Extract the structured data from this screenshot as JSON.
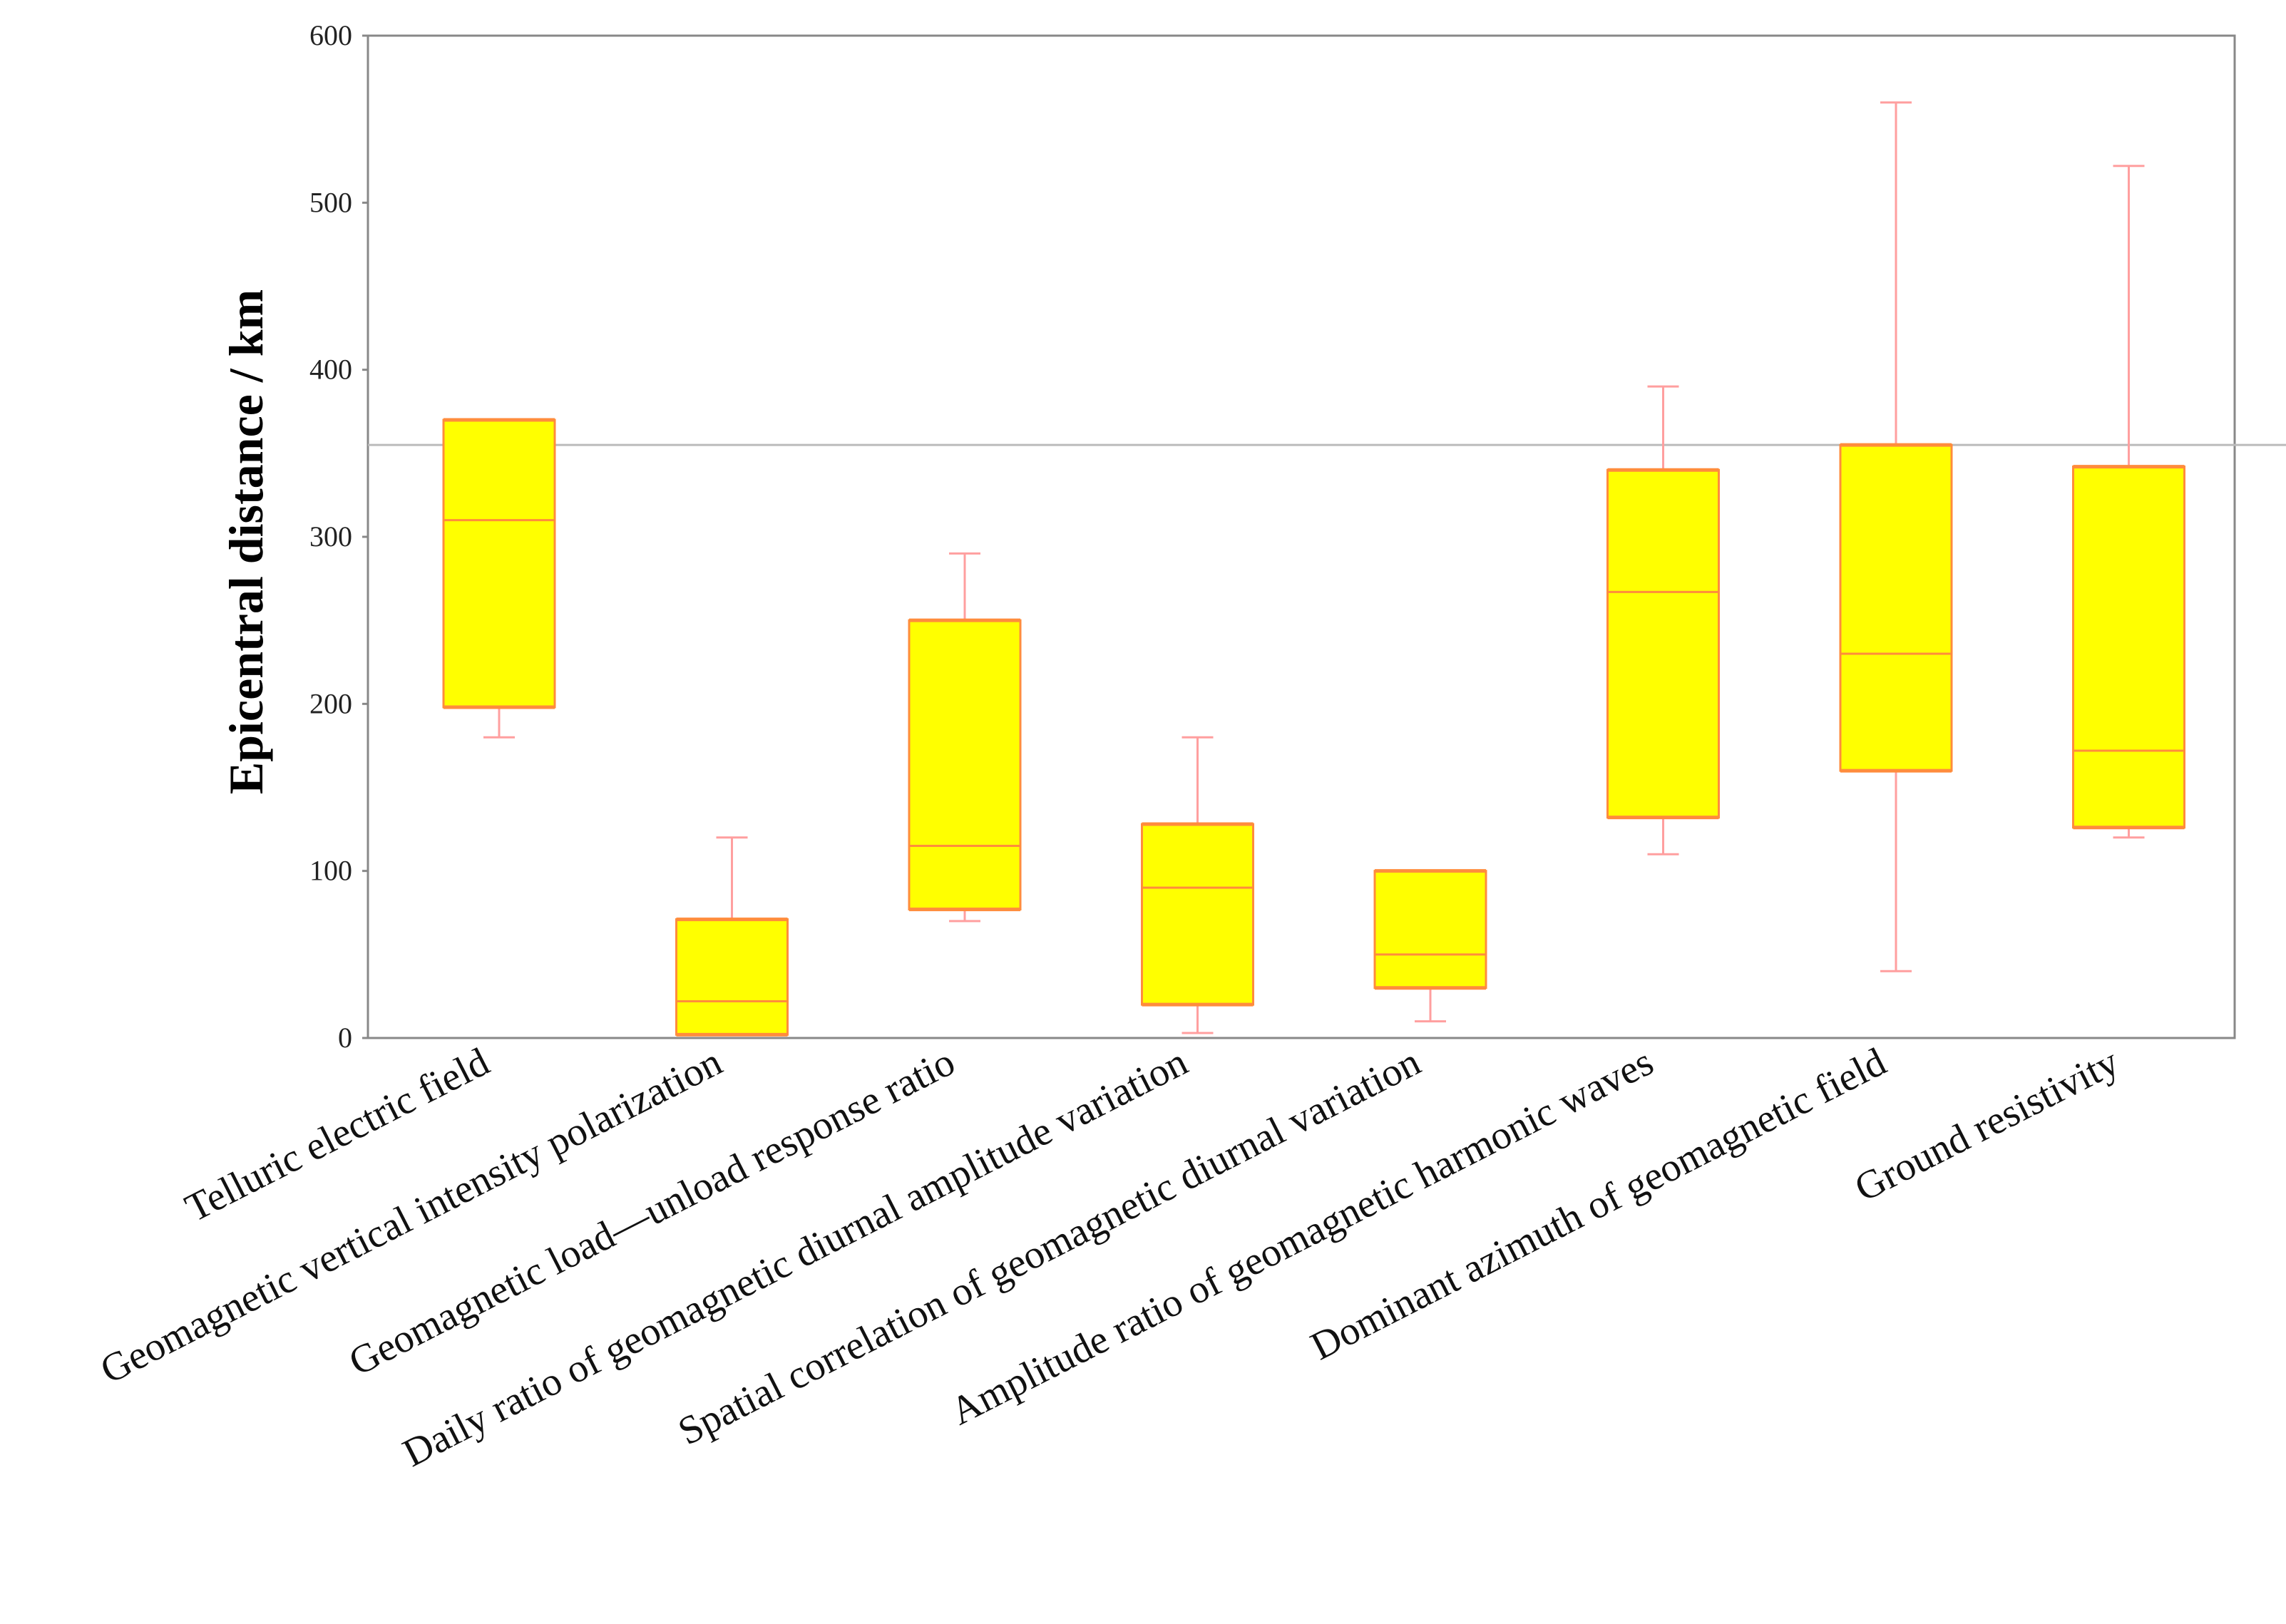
{
  "chart_data": {
    "type": "box",
    "title": "",
    "xlabel": "",
    "ylabel": "Epicentral distance / km",
    "ylim": [
      0,
      600
    ],
    "yticks": [
      0,
      100,
      200,
      300,
      400,
      500,
      600
    ],
    "grid": false,
    "reference_line": 355,
    "colors": {
      "box_fill": "#ffff00",
      "box_edge": "#ff8c3c",
      "median": "#ff8c3c",
      "whisker": "#ff9f9f",
      "reference": "#bbbbbb",
      "frame": "#888888"
    },
    "categories": [
      "Telluric  electric  field",
      "Geomagnetic vertical  intensity polarization",
      "Geomagnetic load—unload response ratio",
      "Daily ratio of geomagnetic diurnal amplitude variation",
      "Spatial correlation of geomagnetic diurnal variation",
      "Amplitude ratio of geomagnetic harmonic waves",
      "Dominant azimuth of geomagnetic field",
      "Ground resistivity"
    ],
    "boxes": [
      {
        "min": 180,
        "q1": 198,
        "median": 310,
        "q3": 370,
        "max": 370
      },
      {
        "min": 2,
        "q1": 2,
        "median": 22,
        "q3": 71,
        "max": 120
      },
      {
        "min": 70,
        "q1": 77,
        "median": 115,
        "q3": 250,
        "max": 290
      },
      {
        "min": 3,
        "q1": 20,
        "median": 90,
        "q3": 128,
        "max": 180
      },
      {
        "min": 10,
        "q1": 30,
        "median": 50,
        "q3": 100,
        "max": 100
      },
      {
        "min": 110,
        "q1": 132,
        "median": 267,
        "q3": 340,
        "max": 390
      },
      {
        "min": 40,
        "q1": 160,
        "median": 230,
        "q3": 355,
        "max": 560
      },
      {
        "min": 120,
        "q1": 126,
        "median": 172,
        "q3": 342,
        "max": 522
      }
    ]
  }
}
